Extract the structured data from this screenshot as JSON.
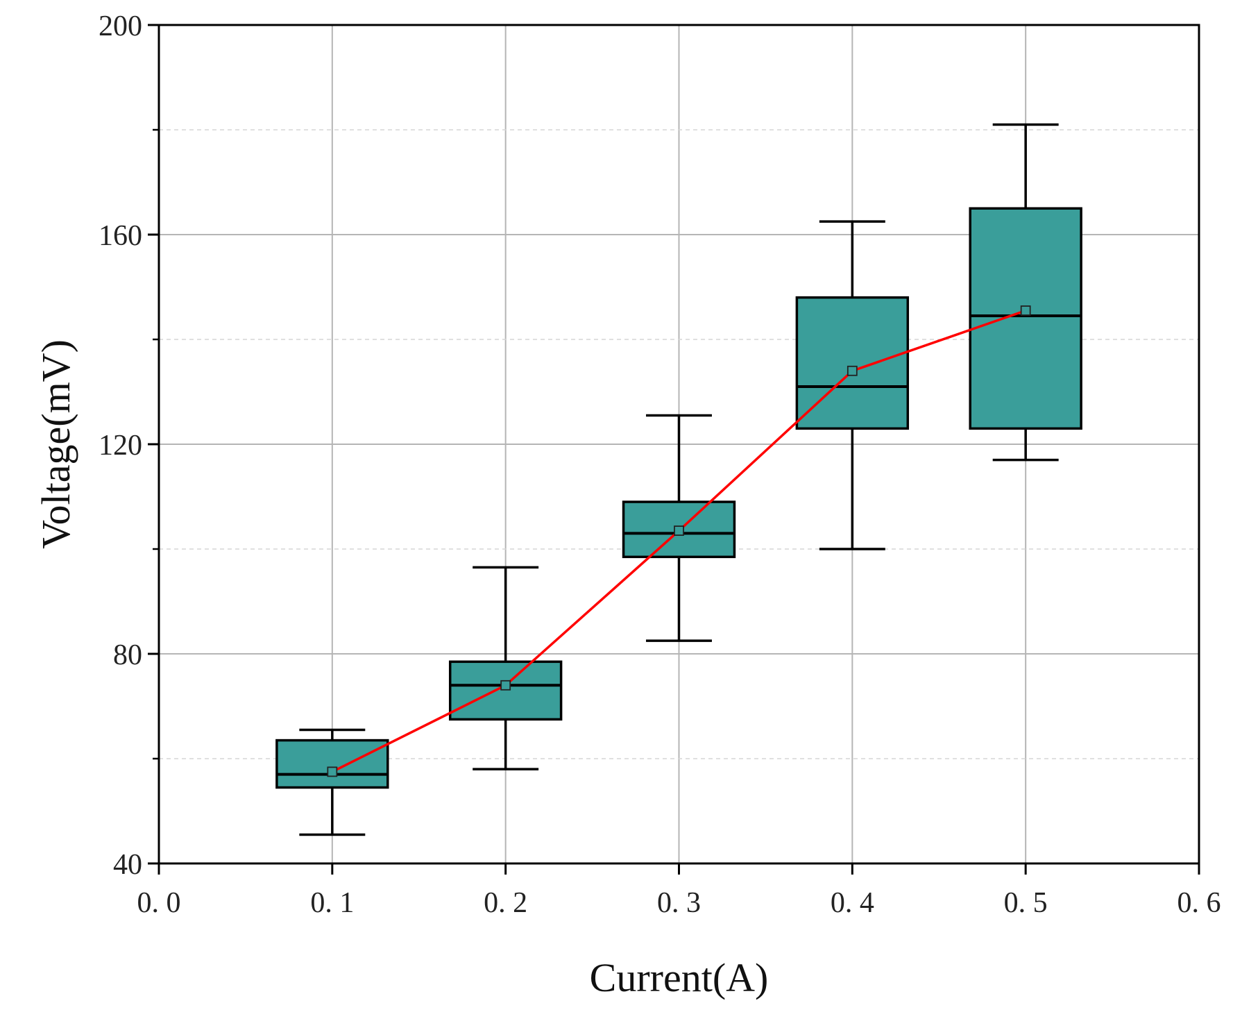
{
  "chart_data": {
    "type": "box",
    "title": "",
    "xlabel": "Current(A)",
    "ylabel": "Voltage(mV)",
    "xlim": [
      0.0,
      0.6
    ],
    "ylim": [
      40,
      200
    ],
    "x_ticks": [
      0.0,
      0.1,
      0.2,
      0.3,
      0.4,
      0.5,
      0.6
    ],
    "x_tick_labels": [
      "0. 0",
      "0. 1",
      "0. 2",
      "0. 3",
      "0. 4",
      "0. 5",
      "0. 6"
    ],
    "y_ticks": [
      40,
      80,
      120,
      160,
      200
    ],
    "y_tick_labels": [
      "40",
      "80",
      "120",
      "160",
      "200"
    ],
    "y_minor_gridlines": [
      60,
      100,
      140,
      180
    ],
    "grid": true,
    "box_color": "#3a9e9a",
    "mean_line_color": "#ff0000",
    "box_half_width": 0.032,
    "boxes": [
      {
        "x": 0.1,
        "whisker_low": 45.5,
        "q1": 54.5,
        "median": 57.0,
        "q3": 63.5,
        "whisker_high": 65.5,
        "mean": 57.5
      },
      {
        "x": 0.2,
        "whisker_low": 58.0,
        "q1": 67.5,
        "median": 74.0,
        "q3": 78.5,
        "whisker_high": 96.5,
        "mean": 74.0
      },
      {
        "x": 0.3,
        "whisker_low": 82.5,
        "q1": 98.5,
        "median": 103.0,
        "q3": 109.0,
        "whisker_high": 125.5,
        "mean": 103.5
      },
      {
        "x": 0.4,
        "whisker_low": 100.0,
        "q1": 123.0,
        "median": 131.0,
        "q3": 148.0,
        "whisker_high": 162.5,
        "mean": 134.0
      },
      {
        "x": 0.5,
        "whisker_low": 117.0,
        "q1": 123.0,
        "median": 144.5,
        "q3": 165.0,
        "whisker_high": 181.0,
        "mean": 145.5
      }
    ]
  }
}
